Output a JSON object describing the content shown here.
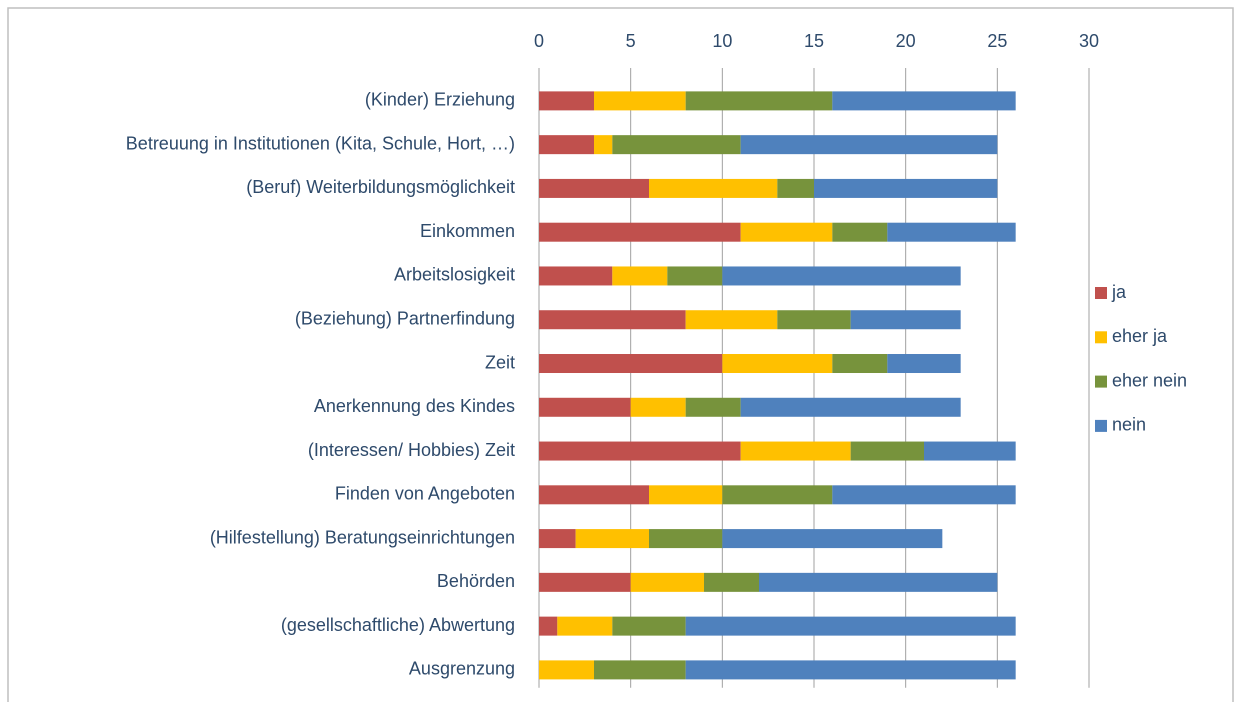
{
  "chart_data": {
    "type": "stacked_barh",
    "categories": [
      "(Kinder) Erziehung",
      "Betreuung in Institutionen (Kita, Schule, Hort, …)",
      "(Beruf) Weiterbildungsmöglichkeit",
      "Einkommen",
      "Arbeitslosigkeit",
      "(Beziehung) Partnerfindung",
      "Zeit",
      "Anerkennung des Kindes",
      "(Interessen/ Hobbies) Zeit",
      "Finden von Angeboten",
      "(Hilfestellung) Beratungseinrichtungen",
      "Behörden",
      "(gesellschaftliche) Abwertung",
      "Ausgrenzung"
    ],
    "series": [
      {
        "name": "ja",
        "color": "#c0504d",
        "values": [
          3,
          3,
          6,
          11,
          4,
          8,
          10,
          5,
          11,
          6,
          2,
          5,
          1,
          0
        ]
      },
      {
        "name": "eher ja",
        "color": "#ffc000",
        "values": [
          5,
          1,
          7,
          5,
          3,
          5,
          6,
          3,
          6,
          4,
          4,
          4,
          3,
          3
        ]
      },
      {
        "name": "eher nein",
        "color": "#77933c",
        "values": [
          8,
          7,
          2,
          3,
          3,
          4,
          3,
          3,
          4,
          6,
          4,
          3,
          4,
          5
        ]
      },
      {
        "name": "nein",
        "color": "#4f81bd",
        "values": [
          10,
          14,
          10,
          7,
          13,
          6,
          4,
          12,
          5,
          10,
          12,
          13,
          18,
          18
        ]
      }
    ],
    "xlim": [
      0,
      30
    ],
    "xticks": [
      0,
      5,
      10,
      15,
      20,
      25,
      30
    ],
    "grid": true,
    "legend": "right"
  }
}
